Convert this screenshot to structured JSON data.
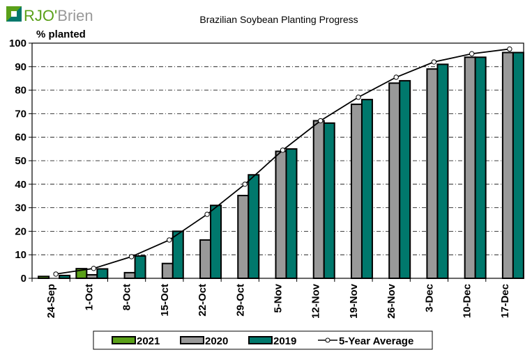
{
  "logo": {
    "text": "RJO'Brien"
  },
  "chart_data": {
    "type": "bar",
    "title": "Brazilian Soybean Planting Progress",
    "ylabel": "% planted",
    "xlabel": "",
    "ylim": [
      0,
      100
    ],
    "yticks": [
      0,
      10,
      20,
      30,
      40,
      50,
      60,
      70,
      80,
      90,
      100
    ],
    "grid": true,
    "legend_position": "bottom",
    "categories": [
      "24-Sep",
      "1-Oct",
      "8-Oct",
      "15-Oct",
      "22-Oct",
      "29-Oct",
      "5-Nov",
      "12-Nov",
      "19-Nov",
      "26-Nov",
      "3-Dec",
      "10-Dec",
      "17-Dec"
    ],
    "series": [
      {
        "name": "2021",
        "type": "bar",
        "color": "#5aa019",
        "values": [
          0.8,
          4.1,
          null,
          null,
          null,
          null,
          null,
          null,
          null,
          null,
          null,
          null,
          null
        ]
      },
      {
        "name": "2020",
        "type": "bar",
        "color": "#999999",
        "values": [
          null,
          1.5,
          2.4,
          6.3,
          16.3,
          35.2,
          54,
          67,
          74,
          83,
          89,
          94,
          96
        ]
      },
      {
        "name": "2019",
        "type": "bar",
        "color": "#00786c",
        "values": [
          1.2,
          4,
          9.5,
          20,
          31,
          44,
          55,
          66,
          76,
          84,
          91,
          94,
          96
        ]
      },
      {
        "name": "5-Year Average",
        "type": "line",
        "color": "#000000",
        "values": [
          1.8,
          4.2,
          9.2,
          16.3,
          27.2,
          40,
          54.5,
          67,
          77,
          85.5,
          92,
          95.5,
          97.5
        ]
      }
    ]
  }
}
